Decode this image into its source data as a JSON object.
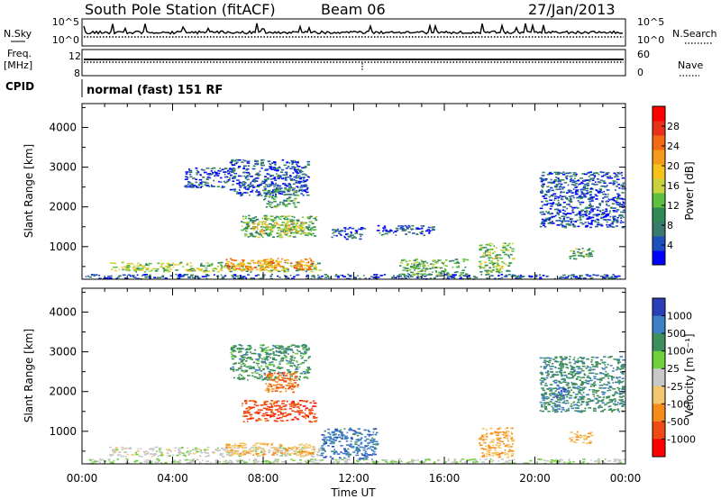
{
  "header": {
    "station": "South Pole Station (fitACF)",
    "beam": "Beam 06",
    "date": "27/Jan/2013"
  },
  "status_panels": {
    "nsky": {
      "label": "N.Sky",
      "ticks": [
        "10^5",
        "10^0"
      ]
    },
    "nsearch": {
      "label": "N.Search",
      "ticks": [
        "10^5",
        "10^0"
      ]
    },
    "freq": {
      "label": "Freq.",
      "unit": "[MHz]",
      "ticks": [
        "12",
        "8"
      ]
    },
    "nave": {
      "label": "Nave",
      "ticks": [
        "60",
        "0"
      ]
    },
    "cpid": {
      "label": "CPID",
      "value": "normal (fast) 151 RF"
    }
  },
  "chart_data": [
    {
      "type": "heatmap",
      "name": "power",
      "ylabel": "Slant Range [km]",
      "yticks": [
        1000,
        2000,
        3000,
        4000
      ],
      "ylim": [
        180,
        4600
      ],
      "xlim": [
        0,
        24
      ],
      "colorbar": {
        "label": "Power [dB]",
        "ticks": [
          "28",
          "24",
          "20",
          "16",
          "12",
          "8",
          "4"
        ],
        "colors": [
          "#0000ff",
          "#1f4fbf",
          "#3a7a6e",
          "#2e8b57",
          "#5fbf3f",
          "#c8d23c",
          "#f5c31c",
          "#f59a1c",
          "#f26a12",
          "#e8301a",
          "#ff0000"
        ]
      },
      "regions": [
        {
          "t": [
            0.1,
            24
          ],
          "r": [
            200,
            320
          ],
          "level": 0.12
        },
        {
          "t": [
            1.2,
            10.5
          ],
          "r": [
            380,
            620
          ],
          "level": 0.45
        },
        {
          "t": [
            6.3,
            10.2
          ],
          "r": [
            420,
            720
          ],
          "level": 0.72
        },
        {
          "t": [
            7.0,
            10.3
          ],
          "r": [
            1250,
            1800
          ],
          "level": 0.35
        },
        {
          "t": [
            7.5,
            9.8
          ],
          "r": [
            1350,
            1650
          ],
          "level": 0.55
        },
        {
          "t": [
            6.5,
            10.0
          ],
          "r": [
            2300,
            3200
          ],
          "level": 0.12
        },
        {
          "t": [
            4.5,
            6.5
          ],
          "r": [
            2500,
            3000
          ],
          "level": 0.1
        },
        {
          "t": [
            8.0,
            9.5
          ],
          "r": [
            2000,
            2500
          ],
          "level": 0.3
        },
        {
          "t": [
            11.0,
            12.5
          ],
          "r": [
            1200,
            1500
          ],
          "level": 0.12
        },
        {
          "t": [
            13.0,
            15.5
          ],
          "r": [
            1300,
            1550
          ],
          "level": 0.1
        },
        {
          "t": [
            20.2,
            23.9
          ],
          "r": [
            1500,
            2900
          ],
          "level": 0.12
        },
        {
          "t": [
            21.5,
            22.5
          ],
          "r": [
            700,
            1000
          ],
          "level": 0.35
        },
        {
          "t": [
            17.5,
            19.0
          ],
          "r": [
            350,
            1100
          ],
          "level": 0.4
        },
        {
          "t": [
            14.0,
            17.0
          ],
          "r": [
            300,
            700
          ],
          "level": 0.35
        }
      ]
    },
    {
      "type": "heatmap",
      "name": "velocity",
      "ylabel": "Slant Range [km]",
      "xlabel": "Time UT",
      "xticks": [
        "00:00",
        "04:00",
        "08:00",
        "12:00",
        "16:00",
        "20:00",
        "00:00"
      ],
      "xtick_values": [
        0,
        4,
        8,
        12,
        16,
        20,
        24
      ],
      "yticks": [
        1000,
        2000,
        3000,
        4000
      ],
      "ylim": [
        180,
        4600
      ],
      "xlim": [
        0,
        24
      ],
      "colorbar": {
        "label": "Velocity [m s⁻¹]",
        "ticks": [
          "1000",
          "500",
          "100",
          "25",
          "-25",
          "-100",
          "-500",
          "-1000"
        ],
        "colors": [
          "#2a3eb8",
          "#3f7fc6",
          "#3e8e5e",
          "#6fd13c",
          "#c8c8c8",
          "#f5c86e",
          "#f58c1a",
          "#f04a14",
          "#ff0000"
        ]
      },
      "regions": [
        {
          "t": [
            0.1,
            24
          ],
          "r": [
            200,
            320
          ],
          "level": 0.1
        },
        {
          "t": [
            1.2,
            10.5
          ],
          "r": [
            380,
            620
          ],
          "level": 0.0
        },
        {
          "t": [
            6.3,
            10.2
          ],
          "r": [
            420,
            720
          ],
          "level": -0.3
        },
        {
          "t": [
            7.0,
            10.3
          ],
          "r": [
            1250,
            1800
          ],
          "level": -0.75
        },
        {
          "t": [
            6.5,
            10.0
          ],
          "r": [
            2300,
            3200
          ],
          "level": 0.5
        },
        {
          "t": [
            8.0,
            9.5
          ],
          "r": [
            2000,
            2500
          ],
          "level": -0.6
        },
        {
          "t": [
            10.5,
            13.0
          ],
          "r": [
            300,
            1100
          ],
          "level": 0.75
        },
        {
          "t": [
            20.2,
            23.9
          ],
          "r": [
            1500,
            2900
          ],
          "level": 0.55
        },
        {
          "t": [
            20.8,
            21.3
          ],
          "r": [
            1800,
            2100
          ],
          "level": 0.9
        },
        {
          "t": [
            21.5,
            22.5
          ],
          "r": [
            700,
            1000
          ],
          "level": -0.3
        },
        {
          "t": [
            17.5,
            19.0
          ],
          "r": [
            350,
            1100
          ],
          "level": -0.35
        }
      ]
    }
  ]
}
